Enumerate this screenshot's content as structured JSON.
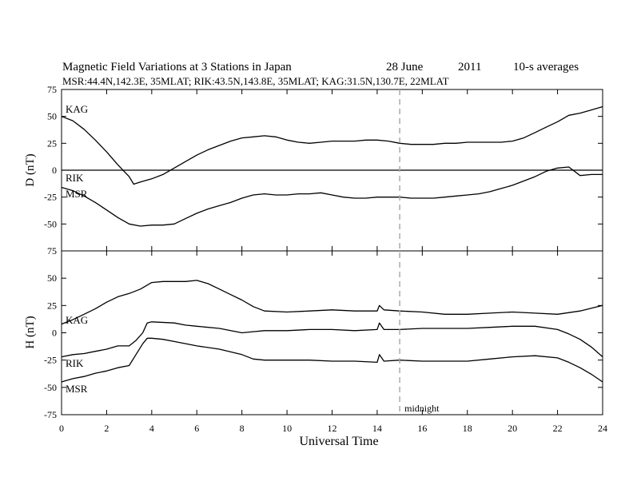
{
  "title": {
    "main": "Magnetic Field Variations at 3 Stations in Japan",
    "date": "28 June",
    "year": "2011",
    "averaging": "10-s averages",
    "stations_line": "MSR:44.4N,142.3E, 35MLAT;  RIK:43.5N,143.8E, 35MLAT;  KAG:31.5N,130.7E, 22MLAT"
  },
  "colors": {
    "trace": "#000000",
    "midnight_line": "#aaaaaa",
    "zero_line": "#000000"
  },
  "chart_data": [
    {
      "type": "line",
      "panel": "D",
      "ylabel": "D (nT)",
      "xlabel": "",
      "xlim": [
        0,
        24
      ],
      "ylim": [
        -75,
        75
      ],
      "yticks": [
        -75,
        -50,
        -25,
        0,
        25,
        50,
        75
      ],
      "xticks": [
        0,
        2,
        4,
        6,
        8,
        10,
        12,
        14,
        16,
        18,
        20,
        22,
        24
      ],
      "zero_line": true,
      "series": [
        {
          "name": "KAG",
          "x": [
            0,
            0.5,
            1,
            1.5,
            2,
            2.5,
            3,
            3.2,
            3.5,
            4,
            4.5,
            5,
            5.5,
            6,
            6.5,
            7,
            7.5,
            8,
            8.5,
            9,
            9.5,
            10,
            10.5,
            11,
            11.5,
            12,
            12.5,
            13,
            13.5,
            14,
            14.5,
            15,
            15.5,
            16,
            16.5,
            17,
            17.5,
            18,
            18.5,
            19,
            19.5,
            20,
            20.5,
            21,
            21.5,
            22,
            22.5,
            23,
            23.5,
            24
          ],
          "values": [
            50,
            46,
            38,
            28,
            17,
            5,
            -6,
            -13,
            -11,
            -8,
            -4,
            2,
            8,
            14,
            19,
            23,
            27,
            30,
            31,
            32,
            31,
            28,
            26,
            25,
            26,
            27,
            27,
            27,
            28,
            28,
            27,
            25,
            24,
            24,
            24,
            25,
            25,
            26,
            26,
            26,
            26,
            27,
            30,
            35,
            40,
            45,
            51,
            53,
            56,
            59
          ]
        },
        {
          "name": "RIK",
          "x": [
            0,
            22,
            22.5,
            23,
            23.5,
            24
          ],
          "values": [
            0,
            0,
            0,
            0,
            0,
            0
          ]
        },
        {
          "name": "MSR",
          "x": [
            0,
            0.5,
            1,
            1.5,
            2,
            2.5,
            3,
            3.5,
            4,
            4.5,
            5,
            5.5,
            6,
            6.5,
            7,
            7.5,
            8,
            8.5,
            9,
            9.5,
            10,
            10.5,
            11,
            11.5,
            12,
            12.5,
            13,
            13.5,
            14,
            14.5,
            15,
            15.5,
            16,
            16.5,
            17,
            17.5,
            18,
            18.5,
            19,
            19.5,
            20,
            20.5,
            21,
            21.5,
            22,
            22.5,
            23,
            23.5,
            24
          ],
          "values": [
            -16,
            -19,
            -24,
            -30,
            -37,
            -44,
            -50,
            -52,
            -51,
            -51,
            -50,
            -45,
            -40,
            -36,
            -33,
            -30,
            -26,
            -23,
            -22,
            -23,
            -23,
            -22,
            -22,
            -21,
            -23,
            -25,
            -26,
            -26,
            -25,
            -25,
            -25,
            -26,
            -26,
            -26,
            -25,
            -24,
            -23,
            -22,
            -20,
            -17,
            -14,
            -10,
            -6,
            -1,
            2,
            3,
            -5,
            -4,
            -4
          ]
        }
      ]
    },
    {
      "type": "line",
      "panel": "H",
      "ylabel": "H (nT)",
      "xlabel": "Universal Time",
      "xlim": [
        0,
        24
      ],
      "ylim": [
        -75,
        75
      ],
      "yticks": [
        -75,
        -50,
        -25,
        0,
        25,
        50,
        75
      ],
      "xticks": [
        0,
        2,
        4,
        6,
        8,
        10,
        12,
        14,
        16,
        18,
        20,
        22,
        24
      ],
      "series": [
        {
          "name": "KAG",
          "x": [
            0,
            0.5,
            1,
            1.5,
            2,
            2.5,
            3,
            3.5,
            4,
            4.5,
            5,
            5.5,
            6,
            6.5,
            7,
            7.5,
            8,
            8.5,
            9,
            10,
            11,
            12,
            13,
            14,
            14.1,
            14.3,
            15,
            16,
            17,
            18,
            19,
            20,
            21,
            22,
            23,
            24
          ],
          "values": [
            8,
            12,
            17,
            22,
            28,
            33,
            36,
            40,
            46,
            47,
            47,
            47,
            48,
            45,
            40,
            35,
            30,
            24,
            20,
            19,
            20,
            21,
            20,
            20,
            25,
            21,
            20,
            19,
            17,
            17,
            18,
            19,
            18,
            17,
            20,
            25
          ]
        },
        {
          "name": "RIK",
          "x": [
            0,
            0.5,
            1,
            1.5,
            2,
            2.5,
            3,
            3.3,
            3.6,
            3.8,
            4,
            5,
            5.5,
            6,
            7,
            8,
            8.5,
            9,
            10,
            11,
            12,
            13,
            14,
            14.1,
            14.3,
            15,
            16,
            17,
            18,
            19,
            20,
            21,
            22,
            22.5,
            23,
            23.5,
            24
          ],
          "values": [
            -22,
            -20,
            -19,
            -17,
            -15,
            -12,
            -12,
            -7,
            0,
            9,
            10,
            9,
            7,
            6,
            4,
            0,
            1,
            2,
            2,
            3,
            3,
            2,
            3,
            9,
            3,
            3,
            4,
            4,
            4,
            5,
            6,
            6,
            3,
            -1,
            -6,
            -13,
            -22
          ]
        },
        {
          "name": "MSR",
          "x": [
            0,
            0.5,
            1,
            1.5,
            2,
            2.5,
            3,
            3.3,
            3.6,
            3.8,
            4,
            4.5,
            5,
            6,
            7,
            8,
            8.5,
            9,
            10,
            11,
            12,
            13,
            14,
            14.1,
            14.3,
            15,
            16,
            17,
            18,
            19,
            20,
            21,
            22,
            22.5,
            23,
            23.5,
            24
          ],
          "values": [
            -45,
            -42,
            -40,
            -37,
            -35,
            -32,
            -30,
            -20,
            -10,
            -5,
            -5,
            -6,
            -8,
            -12,
            -15,
            -20,
            -24,
            -25,
            -25,
            -25,
            -26,
            -26,
            -27,
            -20,
            -26,
            -25,
            -26,
            -26,
            -26,
            -24,
            -22,
            -21,
            -23,
            -27,
            -32,
            -38,
            -45
          ]
        }
      ]
    }
  ],
  "midnight": {
    "x": 15,
    "label": "midnight"
  }
}
